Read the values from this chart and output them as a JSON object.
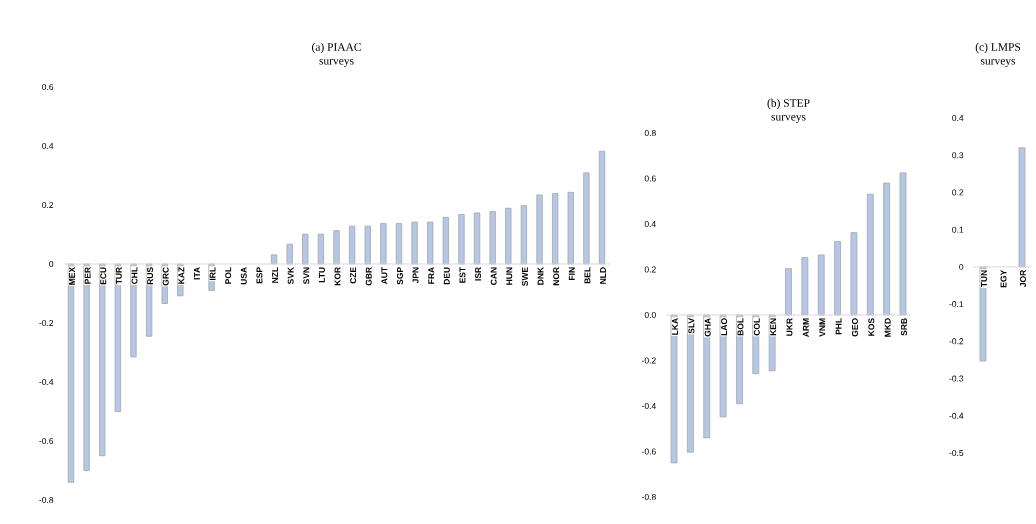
{
  "chart_data": [
    {
      "type": "bar",
      "title": "(a) PIAAC",
      "subtitle": "surveys",
      "color": "#b4c7e7",
      "categories": [
        "MEX",
        "PER",
        "ECU",
        "TUR",
        "CHL",
        "RUS",
        "GRC",
        "KAZ",
        "ITA",
        "IRL",
        "POL",
        "USA",
        "ESP",
        "NZL",
        "SVK",
        "SVN",
        "LTU",
        "KOR",
        "CZE",
        "GBR",
        "AUT",
        "SGP",
        "JPN",
        "FRA",
        "DEU",
        "EST",
        "ISR",
        "CAN",
        "HUN",
        "SWE",
        "DNK",
        "NOR",
        "FIN",
        "BEL",
        "NLD"
      ],
      "values": [
        -0.74,
        -0.7,
        -0.65,
        -0.5,
        -0.315,
        -0.245,
        -0.134,
        -0.108,
        null,
        -0.09,
        null,
        null,
        null,
        0.031,
        0.067,
        0.101,
        0.101,
        0.113,
        0.128,
        0.128,
        0.137,
        0.137,
        0.142,
        0.142,
        0.158,
        0.168,
        0.173,
        0.178,
        0.189,
        0.198,
        0.234,
        0.239,
        0.243,
        0.309,
        0.382
      ],
      "ylim": [
        -0.8,
        0.6
      ],
      "yticks": [
        0.6,
        0.4,
        0.2,
        0,
        -0.2,
        -0.4,
        -0.6,
        -0.8
      ]
    },
    {
      "type": "bar",
      "title": "(b) STEP",
      "subtitle": "surveys",
      "color": "#b4c7e7",
      "categories": [
        "LKA",
        "SLV",
        "GHA",
        "LAO",
        "BOL",
        "COL",
        "KEN",
        "UKR",
        "ARM",
        "VNM",
        "PHL",
        "GEO",
        "KOS",
        "MKD",
        "SRB"
      ],
      "values": [
        -0.65,
        -0.603,
        -0.54,
        -0.448,
        -0.39,
        -0.258,
        -0.245,
        0.204,
        0.253,
        0.264,
        0.323,
        0.362,
        0.531,
        0.58,
        0.625
      ],
      "ylim": [
        -0.8,
        0.8
      ],
      "yticks": [
        0.8,
        0.6,
        0.4,
        0.2,
        {
          "value": 0,
          "label": "0.0"
        },
        -0.2,
        -0.4,
        -0.6,
        -0.8
      ]
    },
    {
      "type": "bar",
      "title": "(c) LMPS",
      "subtitle": "surveys",
      "color": "#b4c7e7",
      "categories": [
        "TUN",
        "EGY",
        "JOR"
      ],
      "values": [
        -0.253,
        null,
        0.32
      ],
      "ylim": [
        -0.5,
        0.4
      ],
      "yticks": [
        0.4,
        0.3,
        0.2,
        0.1,
        0,
        -0.1,
        -0.2,
        -0.3,
        -0.4,
        -0.5
      ]
    }
  ]
}
